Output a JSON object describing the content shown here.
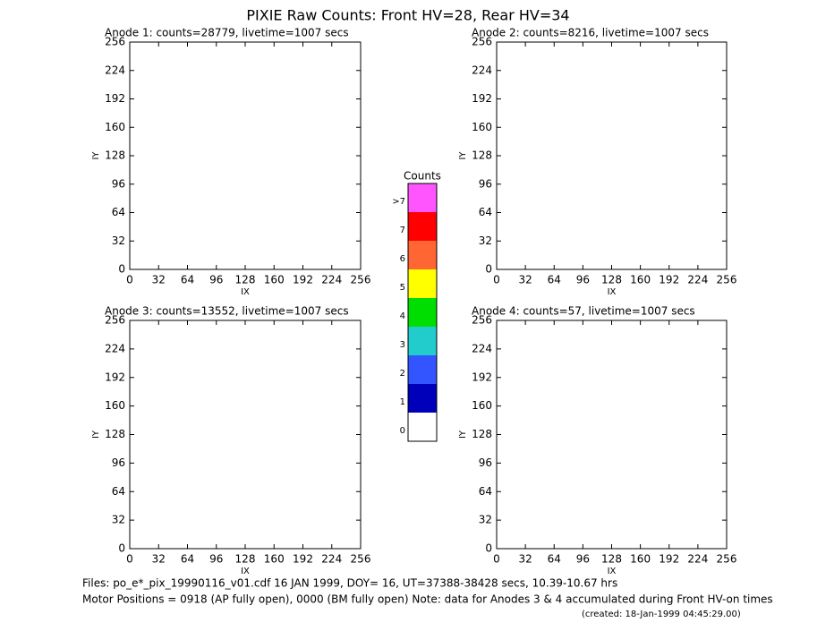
{
  "title": "PIXIE Raw Counts:  Front HV=28, Rear HV=34",
  "chart_data": [
    {
      "type": "heatmap",
      "title": "Anode 1: counts=28779, livetime=1007 secs",
      "xlabel": "IX",
      "ylabel": "IY",
      "xlim": [
        0,
        256
      ],
      "ylim": [
        0,
        256
      ],
      "xticks": [
        0,
        32,
        64,
        96,
        128,
        160,
        192,
        224,
        256
      ],
      "yticks": [
        0,
        32,
        64,
        96,
        128,
        160,
        192,
        224,
        256
      ]
    },
    {
      "type": "heatmap",
      "title": "Anode 2: counts=8216, livetime=1007 secs",
      "xlabel": "IX",
      "ylabel": "IY",
      "xlim": [
        0,
        256
      ],
      "ylim": [
        0,
        256
      ],
      "xticks": [
        0,
        32,
        64,
        96,
        128,
        160,
        192,
        224,
        256
      ],
      "yticks": [
        0,
        32,
        64,
        96,
        128,
        160,
        192,
        224,
        256
      ]
    },
    {
      "type": "heatmap",
      "title": "Anode 3: counts=13552, livetime=1007 secs",
      "xlabel": "IX",
      "ylabel": "IY",
      "xlim": [
        0,
        256
      ],
      "ylim": [
        0,
        256
      ],
      "xticks": [
        0,
        32,
        64,
        96,
        128,
        160,
        192,
        224,
        256
      ],
      "yticks": [
        0,
        32,
        64,
        96,
        128,
        160,
        192,
        224,
        256
      ]
    },
    {
      "type": "heatmap",
      "title": "Anode 4: counts=57, livetime=1007 secs",
      "xlabel": "IX",
      "ylabel": "IY",
      "xlim": [
        0,
        256
      ],
      "ylim": [
        0,
        256
      ],
      "xticks": [
        0,
        32,
        64,
        96,
        128,
        160,
        192,
        224,
        256
      ],
      "yticks": [
        0,
        32,
        64,
        96,
        128,
        160,
        192,
        224,
        256
      ]
    }
  ],
  "colorbar": {
    "title": "Counts",
    "labels": [
      ">7",
      "7",
      "6",
      "5",
      "4",
      "3",
      "2",
      "1",
      "0"
    ],
    "colors": [
      "#ff55ff",
      "#ff0000",
      "#ff6633",
      "#ffff00",
      "#00dd00",
      "#22cccc",
      "#3355ff",
      "#0000bb",
      "#ffffff"
    ]
  },
  "footer": [
    "Files: po_e*_pix_19990116_v01.cdf    16 JAN 1999, DOY= 16, UT=37388-38428 secs, 10.39-10.67 hrs",
    "Motor Positions = 0918 (AP fully open), 0000 (BM fully open)    Note: data for Anodes 3 & 4 accumulated during Front HV-on times",
    "(created: 18-Jan-1999 04:45:29.00)"
  ]
}
